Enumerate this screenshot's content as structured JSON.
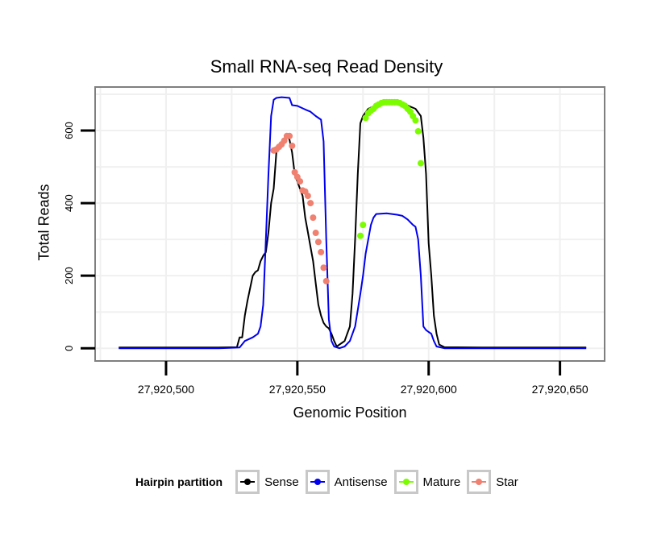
{
  "chart_data": {
    "type": "line",
    "title": "Small RNA-seq Read Density",
    "xlabel": "Genomic Position",
    "ylabel": "Total Reads",
    "xlim": [
      27920473,
      27920667
    ],
    "ylim": [
      -35,
      720
    ],
    "xticks": [
      27920500,
      27920550,
      27920600,
      27920650
    ],
    "xtick_labels": [
      "27,920,500",
      "27,920,550",
      "27,920,600",
      "27,920,650"
    ],
    "yticks": [
      0,
      200,
      400,
      600
    ],
    "ytick_labels": [
      "0",
      "200",
      "400",
      "600"
    ],
    "grid": true,
    "legend": {
      "title": "Hairpin partition",
      "position": "bottom",
      "entries": [
        {
          "name": "Sense",
          "color": "#000000"
        },
        {
          "name": "Antisense",
          "color": "#0000ee"
        },
        {
          "name": "Mature",
          "color": "#7cfc00"
        },
        {
          "name": "Star",
          "color": "#f08070"
        }
      ]
    },
    "series": [
      {
        "name": "Sense",
        "color": "#000000",
        "markers": false,
        "points": [
          [
            27920482,
            2
          ],
          [
            27920500,
            2
          ],
          [
            27920520,
            2
          ],
          [
            27920527,
            3
          ],
          [
            27920528,
            30
          ],
          [
            27920529,
            30
          ],
          [
            27920530,
            90
          ],
          [
            27920531,
            130
          ],
          [
            27920532,
            165
          ],
          [
            27920533,
            200
          ],
          [
            27920534,
            210
          ],
          [
            27920535,
            215
          ],
          [
            27920536,
            240
          ],
          [
            27920537,
            255
          ],
          [
            27920538,
            265
          ],
          [
            27920539,
            320
          ],
          [
            27920540,
            400
          ],
          [
            27920541,
            440
          ],
          [
            27920542,
            540
          ],
          [
            27920543,
            555
          ],
          [
            27920544,
            565
          ],
          [
            27920545,
            578
          ],
          [
            27920546,
            585
          ],
          [
            27920547,
            575
          ],
          [
            27920548,
            540
          ],
          [
            27920549,
            480
          ],
          [
            27920550,
            460
          ],
          [
            27920551,
            440
          ],
          [
            27920552,
            420
          ],
          [
            27920553,
            360
          ],
          [
            27920554,
            320
          ],
          [
            27920555,
            280
          ],
          [
            27920556,
            240
          ],
          [
            27920557,
            180
          ],
          [
            27920558,
            120
          ],
          [
            27920559,
            90
          ],
          [
            27920560,
            70
          ],
          [
            27920561,
            60
          ],
          [
            27920562,
            55
          ],
          [
            27920563,
            40
          ],
          [
            27920564,
            20
          ],
          [
            27920565,
            5
          ],
          [
            27920566,
            10
          ],
          [
            27920567,
            15
          ],
          [
            27920568,
            20
          ],
          [
            27920569,
            40
          ],
          [
            27920570,
            60
          ],
          [
            27920571,
            150
          ],
          [
            27920572,
            300
          ],
          [
            27920573,
            480
          ],
          [
            27920574,
            620
          ],
          [
            27920575,
            640
          ],
          [
            27920577,
            660
          ],
          [
            27920580,
            670
          ],
          [
            27920585,
            675
          ],
          [
            27920590,
            675
          ],
          [
            27920595,
            660
          ],
          [
            27920597,
            640
          ],
          [
            27920598,
            580
          ],
          [
            27920599,
            480
          ],
          [
            27920600,
            290
          ],
          [
            27920601,
            200
          ],
          [
            27920602,
            90
          ],
          [
            27920603,
            40
          ],
          [
            27920604,
            10
          ],
          [
            27920606,
            3
          ],
          [
            27920620,
            2
          ],
          [
            27920660,
            2
          ]
        ]
      },
      {
        "name": "Antisense",
        "color": "#0000ee",
        "markers": false,
        "points": [
          [
            27920482,
            0
          ],
          [
            27920520,
            0
          ],
          [
            27920528,
            2
          ],
          [
            27920530,
            20
          ],
          [
            27920533,
            30
          ],
          [
            27920535,
            40
          ],
          [
            27920536,
            60
          ],
          [
            27920537,
            120
          ],
          [
            27920538,
            300
          ],
          [
            27920539,
            480
          ],
          [
            27920540,
            640
          ],
          [
            27920541,
            685
          ],
          [
            27920542,
            690
          ],
          [
            27920544,
            692
          ],
          [
            27920547,
            690
          ],
          [
            27920548,
            670
          ],
          [
            27920550,
            668
          ],
          [
            27920553,
            658
          ],
          [
            27920555,
            652
          ],
          [
            27920557,
            640
          ],
          [
            27920559,
            630
          ],
          [
            27920560,
            570
          ],
          [
            27920561,
            300
          ],
          [
            27920562,
            80
          ],
          [
            27920563,
            20
          ],
          [
            27920564,
            5
          ],
          [
            27920566,
            0
          ],
          [
            27920568,
            5
          ],
          [
            27920570,
            20
          ],
          [
            27920572,
            60
          ],
          [
            27920574,
            150
          ],
          [
            27920575,
            200
          ],
          [
            27920576,
            260
          ],
          [
            27920577,
            300
          ],
          [
            27920578,
            340
          ],
          [
            27920579,
            360
          ],
          [
            27920580,
            370
          ],
          [
            27920584,
            372
          ],
          [
            27920588,
            368
          ],
          [
            27920590,
            365
          ],
          [
            27920592,
            355
          ],
          [
            27920594,
            340
          ],
          [
            27920595,
            335
          ],
          [
            27920596,
            300
          ],
          [
            27920597,
            200
          ],
          [
            27920598,
            60
          ],
          [
            27920599,
            50
          ],
          [
            27920600,
            45
          ],
          [
            27920601,
            40
          ],
          [
            27920602,
            20
          ],
          [
            27920603,
            5
          ],
          [
            27920606,
            0
          ],
          [
            27920620,
            0
          ],
          [
            27920660,
            0
          ]
        ]
      },
      {
        "name": "Mature",
        "color": "#7cfc00",
        "markers": true,
        "points": [
          [
            27920574,
            310
          ],
          [
            27920575,
            340
          ],
          [
            27920576,
            635
          ],
          [
            27920577,
            648
          ],
          [
            27920578,
            655
          ],
          [
            27920579,
            660
          ],
          [
            27920580,
            668
          ],
          [
            27920581,
            672
          ],
          [
            27920582,
            676
          ],
          [
            27920583,
            678
          ],
          [
            27920584,
            678
          ],
          [
            27920585,
            678
          ],
          [
            27920586,
            678
          ],
          [
            27920587,
            678
          ],
          [
            27920588,
            678
          ],
          [
            27920589,
            676
          ],
          [
            27920590,
            672
          ],
          [
            27920591,
            668
          ],
          [
            27920592,
            660
          ],
          [
            27920593,
            652
          ],
          [
            27920594,
            640
          ],
          [
            27920595,
            628
          ],
          [
            27920596,
            598
          ],
          [
            27920597,
            510
          ]
        ]
      },
      {
        "name": "Star",
        "color": "#f08070",
        "markers": true,
        "points": [
          [
            27920541,
            545
          ],
          [
            27920542,
            548
          ],
          [
            27920543,
            555
          ],
          [
            27920544,
            562
          ],
          [
            27920545,
            572
          ],
          [
            27920546,
            585
          ],
          [
            27920547,
            585
          ],
          [
            27920548,
            558
          ],
          [
            27920549,
            485
          ],
          [
            27920550,
            472
          ],
          [
            27920551,
            460
          ],
          [
            27920552,
            435
          ],
          [
            27920553,
            432
          ],
          [
            27920554,
            420
          ],
          [
            27920555,
            400
          ],
          [
            27920556,
            360
          ],
          [
            27920557,
            318
          ],
          [
            27920558,
            293
          ],
          [
            27920559,
            265
          ],
          [
            27920560,
            222
          ],
          [
            27920561,
            185
          ]
        ]
      }
    ]
  }
}
